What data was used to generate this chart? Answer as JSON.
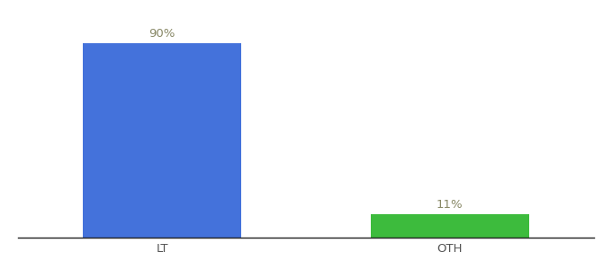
{
  "categories": [
    "LT",
    "OTH"
  ],
  "values": [
    90,
    11
  ],
  "bar_colors": [
    "#4472db",
    "#3dbb3d"
  ],
  "label_texts": [
    "90%",
    "11%"
  ],
  "label_color": "#888866",
  "ylim": [
    0,
    100
  ],
  "background_color": "#ffffff",
  "label_fontsize": 9.5,
  "tick_fontsize": 9.5,
  "bar_width": 0.55,
  "xlim": [
    -0.5,
    1.5
  ]
}
